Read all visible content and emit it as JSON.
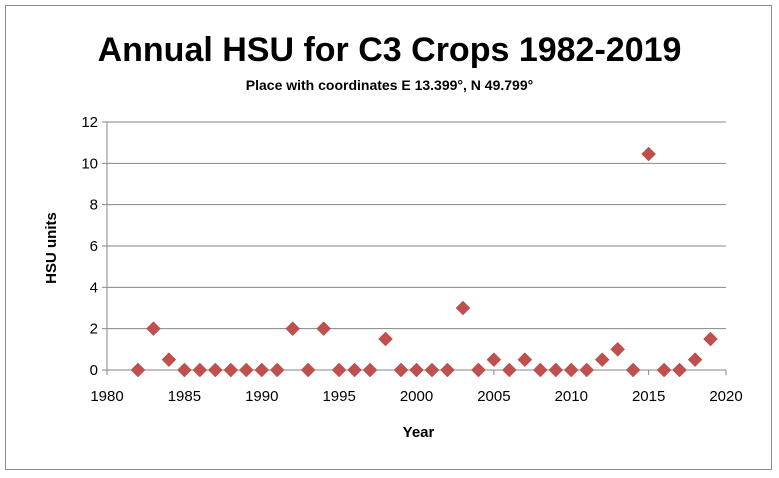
{
  "chart_data": {
    "type": "scatter",
    "title": "Annual HSU for C3 Crops 1982-2019",
    "subtitle": "Place with coordinates E 13.399°, N 49.799°",
    "xlabel": "Year",
    "ylabel": "HSU units",
    "xlim": [
      1980,
      2020
    ],
    "ylim": [
      0,
      12
    ],
    "x_ticks": [
      "1980",
      "1985",
      "1990",
      "1995",
      "2000",
      "2005",
      "2010",
      "2015",
      "2020"
    ],
    "y_ticks": [
      "0",
      "2",
      "4",
      "6",
      "8",
      "10",
      "12"
    ],
    "grid": "horizontal",
    "legend": "none",
    "marker": "diamond",
    "marker_color": "#C0504D",
    "x": [
      1982,
      1983,
      1984,
      1985,
      1986,
      1987,
      1988,
      1989,
      1990,
      1991,
      1992,
      1993,
      1994,
      1995,
      1996,
      1997,
      1998,
      1999,
      2000,
      2001,
      2002,
      2003,
      2004,
      2005,
      2006,
      2007,
      2008,
      2009,
      2010,
      2011,
      2012,
      2013,
      2014,
      2015,
      2016,
      2017,
      2018,
      2019
    ],
    "y": [
      0,
      2,
      0.5,
      0,
      0,
      0,
      0,
      0,
      0,
      0,
      2,
      0,
      2,
      0,
      0,
      0,
      1.5,
      0,
      0,
      0,
      0,
      3,
      0,
      0.5,
      0,
      0.5,
      0,
      0,
      0,
      0,
      0.5,
      1,
      0,
      10.45,
      0,
      0,
      0.5,
      1.5
    ]
  }
}
